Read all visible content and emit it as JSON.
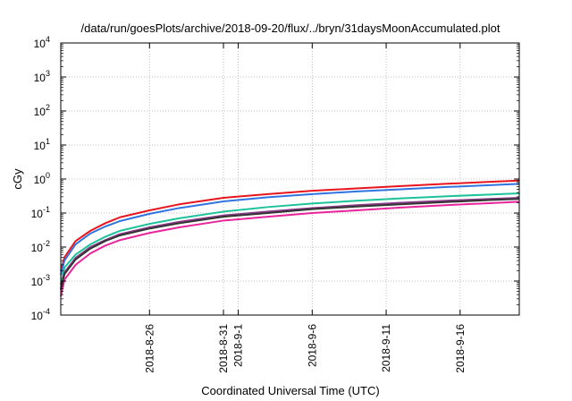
{
  "chart_data": {
    "type": "line",
    "title": "/data/run/goesPlots/archive/2018-09-20/flux/../bryn/31daysMoonAccumulated.plot",
    "xlabel": "Coordinated Universal Time (UTC)",
    "ylabel": "cGy",
    "yscale": "log",
    "ylim": [
      0.0001,
      10000
    ],
    "xlim": [
      "2018-08-20",
      "2018-09-20"
    ],
    "grid": true,
    "legend": "none",
    "y_ticks": [
      {
        "value": 0.0001,
        "base": "10",
        "exp": "-4"
      },
      {
        "value": 0.001,
        "base": "10",
        "exp": "-3"
      },
      {
        "value": 0.01,
        "base": "10",
        "exp": "-2"
      },
      {
        "value": 0.1,
        "base": "10",
        "exp": "-1"
      },
      {
        "value": 1,
        "base": "10",
        "exp": "0"
      },
      {
        "value": 10,
        "base": "10",
        "exp": "1"
      },
      {
        "value": 100,
        "base": "10",
        "exp": "2"
      },
      {
        "value": 1000,
        "base": "10",
        "exp": "3"
      },
      {
        "value": 10000,
        "base": "10",
        "exp": "4"
      }
    ],
    "x_ticks": [
      {
        "value": "2018-08-26",
        "label": "2018-8-26"
      },
      {
        "value": "2018-08-31",
        "label": "2018-8-31"
      },
      {
        "value": "2018-09-01",
        "label": "2018-9-1"
      },
      {
        "value": "2018-09-06",
        "label": "2018-9-6"
      },
      {
        "value": "2018-09-11",
        "label": "2018-9-11"
      },
      {
        "value": "2018-09-16",
        "label": "2018-9-16"
      }
    ],
    "series": [
      {
        "color": "#e8141e",
        "x": [
          "2018-08-20",
          "2018-08-20T06:00",
          "2018-08-21",
          "2018-08-22",
          "2018-08-23",
          "2018-08-24",
          "2018-08-26",
          "2018-08-28",
          "2018-08-31",
          "2018-09-03",
          "2018-09-06",
          "2018-09-09",
          "2018-09-12",
          "2018-09-15",
          "2018-09-18",
          "2018-09-20"
        ],
        "y": [
          0.002,
          0.005,
          0.015,
          0.03,
          0.05,
          0.075,
          0.12,
          0.18,
          0.28,
          0.36,
          0.45,
          0.53,
          0.62,
          0.72,
          0.83,
          0.9
        ]
      },
      {
        "color": "#2f74e0",
        "x": [
          "2018-08-20",
          "2018-08-20T06:00",
          "2018-08-21",
          "2018-08-22",
          "2018-08-23",
          "2018-08-24",
          "2018-08-26",
          "2018-08-28",
          "2018-08-31",
          "2018-09-03",
          "2018-09-06",
          "2018-09-09",
          "2018-09-12",
          "2018-09-15",
          "2018-09-18",
          "2018-09-20"
        ],
        "y": [
          0.0015,
          0.004,
          0.012,
          0.025,
          0.04,
          0.058,
          0.095,
          0.14,
          0.22,
          0.29,
          0.36,
          0.43,
          0.5,
          0.58,
          0.66,
          0.72
        ]
      },
      {
        "color": "#1dc29a",
        "x": [
          "2018-08-20",
          "2018-08-20T06:00",
          "2018-08-21",
          "2018-08-22",
          "2018-08-23",
          "2018-08-24",
          "2018-08-26",
          "2018-08-28",
          "2018-08-31",
          "2018-09-03",
          "2018-09-06",
          "2018-09-09",
          "2018-09-12",
          "2018-09-15",
          "2018-09-18",
          "2018-09-20"
        ],
        "y": [
          0.0008,
          0.0025,
          0.006,
          0.012,
          0.02,
          0.03,
          0.048,
          0.07,
          0.11,
          0.15,
          0.19,
          0.23,
          0.27,
          0.31,
          0.35,
          0.38
        ]
      },
      {
        "color": "#8a3b86",
        "x": [
          "2018-08-20",
          "2018-08-20T06:00",
          "2018-08-21",
          "2018-08-22",
          "2018-08-23",
          "2018-08-24",
          "2018-08-26",
          "2018-08-28",
          "2018-08-31",
          "2018-09-03",
          "2018-09-06",
          "2018-09-09",
          "2018-09-12",
          "2018-09-15",
          "2018-09-18",
          "2018-09-20"
        ],
        "y": [
          0.0006,
          0.0018,
          0.0048,
          0.01,
          0.016,
          0.024,
          0.038,
          0.055,
          0.085,
          0.11,
          0.14,
          0.17,
          0.2,
          0.23,
          0.26,
          0.28
        ]
      },
      {
        "color": "#333333",
        "x": [
          "2018-08-20",
          "2018-08-20T06:00",
          "2018-08-21",
          "2018-08-22",
          "2018-08-23",
          "2018-08-24",
          "2018-08-26",
          "2018-08-28",
          "2018-08-31",
          "2018-09-03",
          "2018-09-06",
          "2018-09-09",
          "2018-09-12",
          "2018-09-15",
          "2018-09-18",
          "2018-09-20"
        ],
        "y": [
          0.00055,
          0.0016,
          0.0043,
          0.009,
          0.015,
          0.022,
          0.035,
          0.05,
          0.078,
          0.1,
          0.13,
          0.155,
          0.18,
          0.21,
          0.24,
          0.26
        ]
      },
      {
        "color": "#e8249a",
        "x": [
          "2018-08-20",
          "2018-08-20T06:00",
          "2018-08-21",
          "2018-08-22",
          "2018-08-23",
          "2018-08-24",
          "2018-08-26",
          "2018-08-28",
          "2018-08-31",
          "2018-09-03",
          "2018-09-06",
          "2018-09-09",
          "2018-09-12",
          "2018-09-15",
          "2018-09-18",
          "2018-09-20"
        ],
        "y": [
          0.00035,
          0.0011,
          0.003,
          0.0065,
          0.011,
          0.016,
          0.026,
          0.038,
          0.06,
          0.078,
          0.1,
          0.12,
          0.145,
          0.17,
          0.195,
          0.215
        ]
      }
    ]
  }
}
